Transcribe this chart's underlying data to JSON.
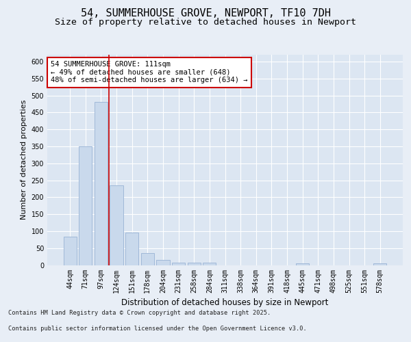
{
  "title1": "54, SUMMERHOUSE GROVE, NEWPORT, TF10 7DH",
  "title2": "Size of property relative to detached houses in Newport",
  "xlabel": "Distribution of detached houses by size in Newport",
  "ylabel": "Number of detached properties",
  "categories": [
    "44sqm",
    "71sqm",
    "97sqm",
    "124sqm",
    "151sqm",
    "178sqm",
    "204sqm",
    "231sqm",
    "258sqm",
    "284sqm",
    "311sqm",
    "338sqm",
    "364sqm",
    "391sqm",
    "418sqm",
    "445sqm",
    "471sqm",
    "498sqm",
    "525sqm",
    "551sqm",
    "578sqm"
  ],
  "values": [
    83,
    350,
    480,
    235,
    95,
    35,
    15,
    8,
    8,
    8,
    0,
    0,
    0,
    0,
    0,
    5,
    0,
    0,
    0,
    0,
    5
  ],
  "bar_color": "#c9d9ec",
  "bar_edgecolor": "#a0b8d8",
  "vline_x": 2.52,
  "vline_color": "#cc0000",
  "annotation_text": "54 SUMMERHOUSE GROVE: 111sqm\n← 49% of detached houses are smaller (648)\n48% of semi-detached houses are larger (634) →",
  "annotation_box_color": "#ffffff",
  "annotation_box_edgecolor": "#cc0000",
  "ylim": [
    0,
    620
  ],
  "yticks": [
    0,
    50,
    100,
    150,
    200,
    250,
    300,
    350,
    400,
    450,
    500,
    550,
    600
  ],
  "bg_color": "#e8eef6",
  "plot_bg_color": "#dce6f2",
  "grid_color": "#ffffff",
  "footer1": "Contains HM Land Registry data © Crown copyright and database right 2025.",
  "footer2": "Contains public sector information licensed under the Open Government Licence v3.0.",
  "title_fontsize": 11,
  "subtitle_fontsize": 9.5,
  "tick_fontsize": 7,
  "ylabel_fontsize": 8,
  "xlabel_fontsize": 8.5,
  "annotation_fontsize": 7.5,
  "footer_fontsize": 6.2
}
